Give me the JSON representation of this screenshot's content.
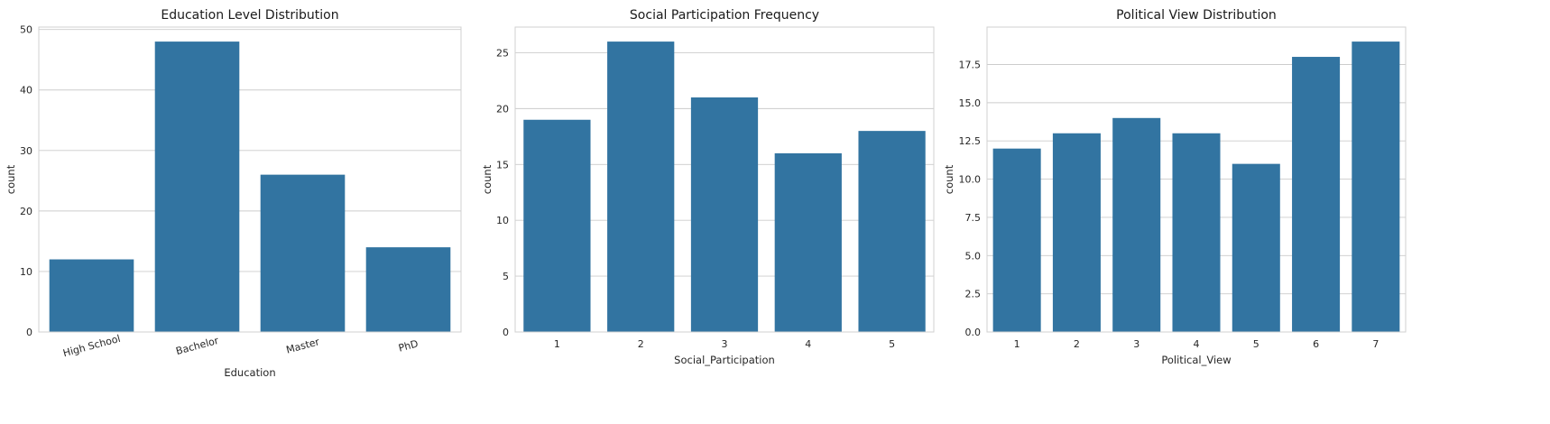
{
  "chart_data": [
    {
      "type": "bar",
      "title": "Education Level Distribution",
      "xlabel": "Education",
      "ylabel": "count",
      "categories": [
        "High School",
        "Bachelor",
        "Master",
        "PhD"
      ],
      "values": [
        12,
        48,
        26,
        14
      ],
      "ylim": [
        0,
        50.4
      ],
      "yticks": [
        0,
        10,
        20,
        30,
        40,
        50
      ],
      "ytick_labels": [
        "0",
        "10",
        "20",
        "30",
        "40",
        "50"
      ],
      "xtick_rotation": -15,
      "bar_color": "#3274a1",
      "grid": true
    },
    {
      "type": "bar",
      "title": "Social Participation Frequency",
      "xlabel": "Social_Participation",
      "ylabel": "count",
      "categories": [
        "1",
        "2",
        "3",
        "4",
        "5"
      ],
      "values": [
        19,
        26,
        21,
        16,
        18
      ],
      "ylim": [
        0,
        27.3
      ],
      "yticks": [
        0,
        5,
        10,
        15,
        20,
        25
      ],
      "ytick_labels": [
        "0",
        "5",
        "10",
        "15",
        "20",
        "25"
      ],
      "xtick_rotation": 0,
      "bar_color": "#3274a1",
      "grid": true
    },
    {
      "type": "bar",
      "title": "Political View Distribution",
      "xlabel": "Political_View",
      "ylabel": "count",
      "categories": [
        "1",
        "2",
        "3",
        "4",
        "5",
        "6",
        "7"
      ],
      "values": [
        12,
        13,
        14,
        13,
        11,
        18,
        19
      ],
      "ylim": [
        0,
        19.95
      ],
      "yticks": [
        0,
        2.5,
        5,
        7.5,
        10,
        12.5,
        15,
        17.5
      ],
      "ytick_labels": [
        "0.0",
        "2.5",
        "5.0",
        "7.5",
        "10.0",
        "12.5",
        "15.0",
        "17.5"
      ],
      "xtick_rotation": 0,
      "bar_color": "#3274a1",
      "grid": true
    }
  ]
}
